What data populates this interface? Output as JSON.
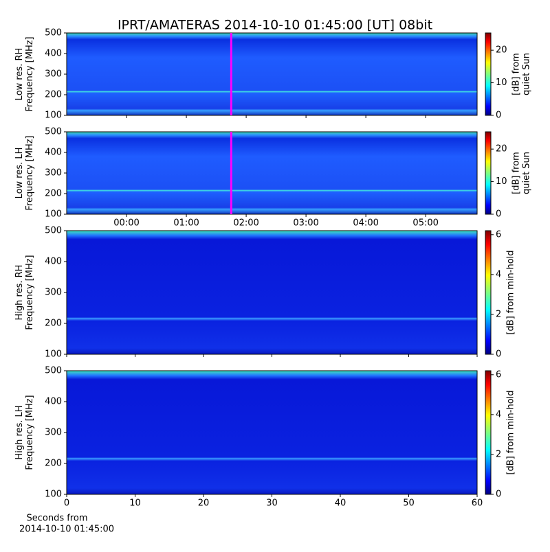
{
  "chart_data": [
    {
      "type": "spectrogram",
      "title": "IPRT/AMATERAS 2014-10-10 01:45:00 [UT]   08bit",
      "ylabel": [
        "Low res. RH",
        "Frequency [MHz]"
      ],
      "ylim": [
        100,
        500
      ],
      "yticks": [
        100,
        200,
        300,
        400,
        500
      ],
      "xlim": [
        -1,
        5.86
      ],
      "marker": 1.75,
      "marker_color": "#ff00ff",
      "colorbar_label": [
        "[dB] from",
        "quiet Sun"
      ],
      "clim": [
        0,
        25.3
      ],
      "cticks": [
        0,
        10,
        20
      ],
      "colormap": "jet"
    },
    {
      "type": "spectrogram",
      "ylabel": [
        "Low res. LH",
        "Frequency [MHz]"
      ],
      "ylim": [
        100,
        500
      ],
      "yticks": [
        100,
        200,
        300,
        400,
        500
      ],
      "xlim": [
        -1,
        5.86
      ],
      "xticks": [
        {
          "value": 0,
          "label": "00:00"
        },
        {
          "value": 1,
          "label": "01:00"
        },
        {
          "value": 2,
          "label": "02:00"
        },
        {
          "value": 3,
          "label": "03:00"
        },
        {
          "value": 4,
          "label": "04:00"
        },
        {
          "value": 5,
          "label": "05:00"
        }
      ],
      "marker": 1.75,
      "marker_color": "#ff00ff",
      "colorbar_label": [
        "[dB] from",
        "quiet Sun"
      ],
      "clim": [
        0,
        25.3
      ],
      "cticks": [
        0,
        10,
        20
      ],
      "colormap": "jet"
    },
    {
      "type": "spectrogram",
      "ylabel": [
        "High res. RH",
        "Frequency [MHz]"
      ],
      "ylim": [
        100,
        500
      ],
      "yticks": [
        100,
        200,
        300,
        400,
        500
      ],
      "xlim": [
        0,
        60
      ],
      "colorbar_label": [
        "[dB] from min-hold"
      ],
      "clim": [
        0,
        6.2
      ],
      "cticks": [
        0,
        2,
        4,
        6
      ],
      "colormap": "jet"
    },
    {
      "type": "spectrogram",
      "ylabel": [
        "High res. LH",
        "Frequency [MHz]"
      ],
      "ylim": [
        100,
        500
      ],
      "yticks": [
        100,
        200,
        300,
        400,
        500
      ],
      "xlim": [
        0,
        60
      ],
      "xticks": [
        0,
        10,
        20,
        30,
        40,
        50,
        60
      ],
      "xlabel": [
        "Seconds from",
        "2014-10-10 01:45:00"
      ],
      "colorbar_label": [
        "[dB] from min-hold"
      ],
      "clim": [
        0,
        6.2
      ],
      "cticks": [
        0,
        2,
        4,
        6
      ],
      "colormap": "jet"
    }
  ]
}
